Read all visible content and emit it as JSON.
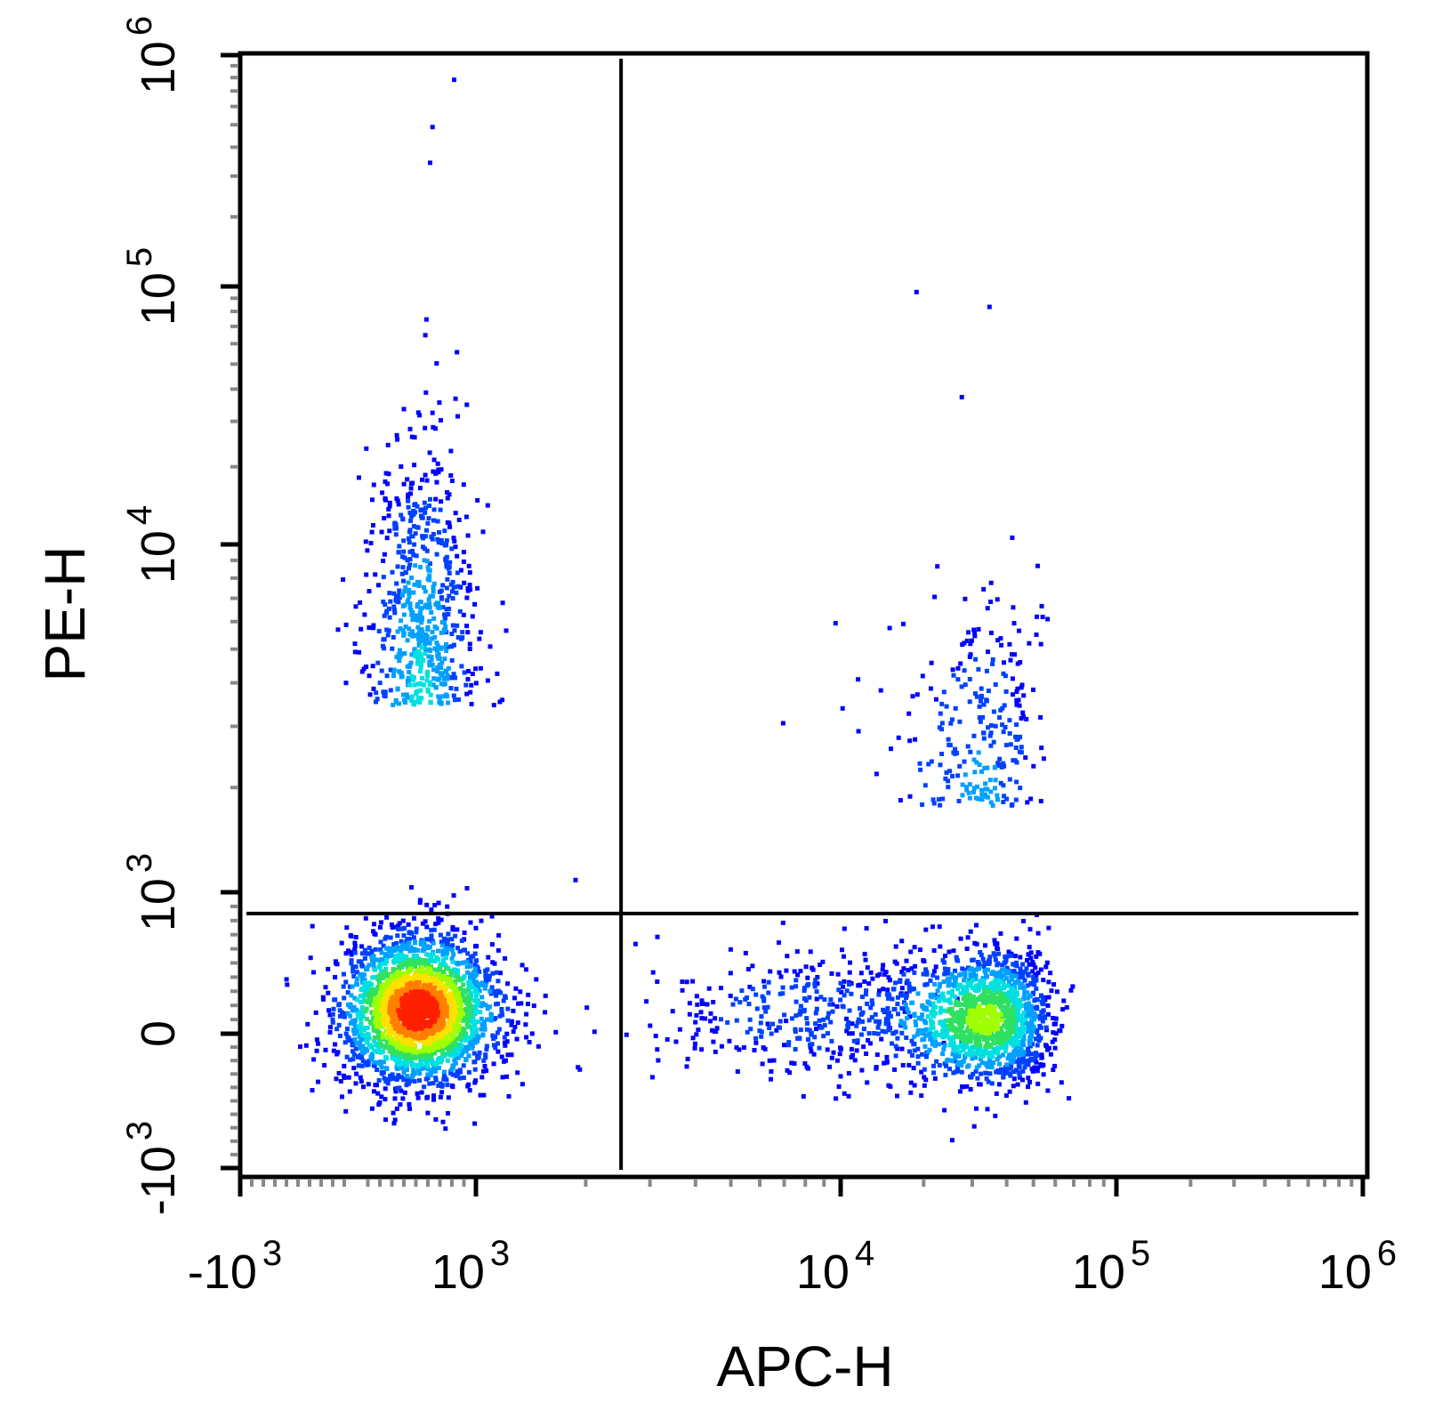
{
  "chart_data": {
    "type": "scatter",
    "style": "density-dot-plot",
    "xlabel": "APC-H",
    "ylabel": "PE-H",
    "x_scale": "biexponential",
    "y_scale": "biexponential",
    "x_ticks": [
      {
        "value": -1000,
        "base": "-10",
        "exp": "3"
      },
      {
        "value": 1000,
        "base": "10",
        "exp": "3"
      },
      {
        "value": 10000,
        "base": "10",
        "exp": "4"
      },
      {
        "value": 100000,
        "base": "10",
        "exp": "5"
      },
      {
        "value": 1000000,
        "base": "10",
        "exp": "6"
      }
    ],
    "y_ticks": [
      {
        "value": -1000,
        "base": "-10",
        "exp": "3"
      },
      {
        "value": 0,
        "base": "0",
        "exp": ""
      },
      {
        "value": 1000,
        "base": "10",
        "exp": "3"
      },
      {
        "value": 10000,
        "base": "10",
        "exp": "4"
      },
      {
        "value": 100000,
        "base": "10",
        "exp": "5"
      },
      {
        "value": 1000000,
        "base": "10",
        "exp": "6"
      }
    ],
    "xlim": [
      -1000,
      1000000
    ],
    "ylim": [
      -1000,
      1000000
    ],
    "gates": {
      "quadrant_x": 2500,
      "quadrant_y": 850
    },
    "density_colors": [
      "#0000ff",
      "#0040ff",
      "#00a0ff",
      "#00e0e0",
      "#30e060",
      "#a0ff00",
      "#ffe000",
      "#ff8000",
      "#ff2000"
    ],
    "populations": [
      {
        "id": "neg-neg",
        "x_center": 500,
        "x_spread": 320,
        "y_center": 180,
        "y_spread": 260,
        "count": 2600,
        "peak": 1.0
      },
      {
        "id": "pos-neg",
        "x_center": 33000,
        "x_spread": 11000,
        "y_center": 120,
        "y_spread": 240,
        "count": 1500,
        "peak": 0.55
      },
      {
        "id": "neg-tail",
        "x_center": 520,
        "x_spread": 230,
        "y_center": 3500,
        "y_spread": 2.8,
        "count": 650,
        "peak": 0.3
      },
      {
        "id": "pos-tail",
        "x_center": 32000,
        "x_spread": 10000,
        "y_center": 1800,
        "y_spread": 2.2,
        "count": 260,
        "peak": 0.2
      },
      {
        "id": "bridge",
        "x_center": 8000,
        "x_spread": 2.2,
        "y_center": 150,
        "y_spread": 220,
        "count": 300,
        "peak": 0.15
      }
    ],
    "outliers": [
      {
        "x": 800,
        "y": 800000
      },
      {
        "x": 620,
        "y": 500000
      },
      {
        "x": 600,
        "y": 350000
      },
      {
        "x": 570,
        "y": 76000
      },
      {
        "x": 560,
        "y": 66000
      },
      {
        "x": 620,
        "y": 33000
      },
      {
        "x": 830,
        "y": 32000
      },
      {
        "x": 18500,
        "y": 97000
      },
      {
        "x": 34000,
        "y": 85000
      },
      {
        "x": 27000,
        "y": 38000
      },
      {
        "x": 1850,
        "y": 1100
      },
      {
        "x": 2700,
        "y": 650
      },
      {
        "x": 3100,
        "y": 700
      },
      {
        "x": 1900,
        "y": -250
      },
      {
        "x": 7800,
        "y": -450
      },
      {
        "x": 300,
        "y": -650
      },
      {
        "x": -500,
        "y": -80
      }
    ]
  }
}
